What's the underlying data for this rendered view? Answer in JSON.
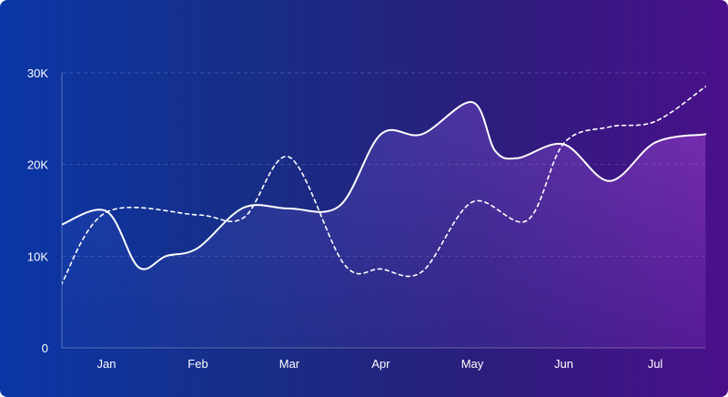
{
  "chart_data": {
    "type": "area",
    "categories": [
      "Jan",
      "Feb",
      "Mar",
      "Apr",
      "May",
      "Jun",
      "Jul"
    ],
    "y_ticks": [
      "0",
      "10K",
      "20K",
      "30K"
    ],
    "ylim": [
      0,
      30000
    ],
    "grid": true,
    "series": [
      {
        "style": "solid-area",
        "color": "#ffffff",
        "x": [
          -0.5,
          0,
          0.35,
          0.65,
          1.0,
          1.5,
          2.0,
          2.55,
          3.0,
          3.45,
          4.0,
          4.25,
          4.5,
          5.0,
          5.5,
          6.0,
          6.55
        ],
        "values": [
          13400,
          14900,
          8800,
          10000,
          10900,
          15300,
          15200,
          15500,
          23300,
          23300,
          26800,
          21500,
          20700,
          22200,
          18200,
          22400,
          23300
        ]
      },
      {
        "style": "dashed",
        "color": "#ffffff",
        "x": [
          -0.5,
          0,
          1.0,
          1.5,
          2.0,
          2.6,
          3.0,
          3.45,
          4.0,
          4.6,
          5.0,
          5.5,
          6.0,
          6.55
        ],
        "values": [
          6800,
          14800,
          14500,
          14200,
          20800,
          9100,
          8600,
          8300,
          15900,
          13900,
          22300,
          24100,
          24700,
          28500
        ]
      }
    ]
  }
}
